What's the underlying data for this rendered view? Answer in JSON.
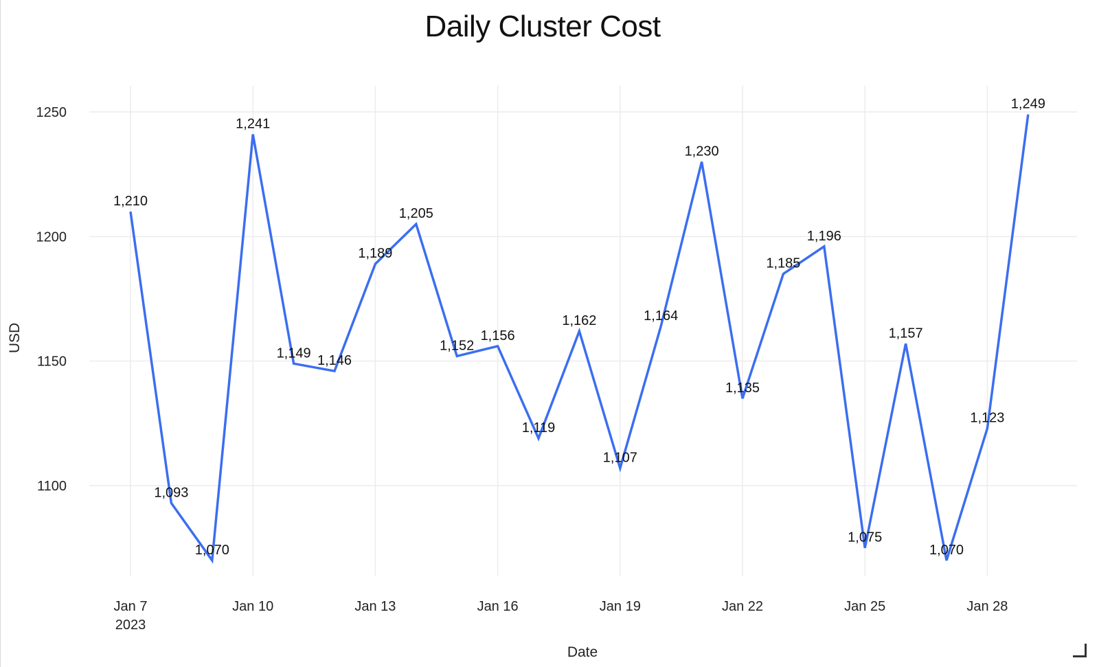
{
  "chart_data": {
    "type": "line",
    "title": "Daily Cluster Cost",
    "xlabel": "Date",
    "ylabel": "USD",
    "x": [
      "2023-01-07",
      "2023-01-08",
      "2023-01-09",
      "2023-01-10",
      "2023-01-11",
      "2023-01-12",
      "2023-01-13",
      "2023-01-14",
      "2023-01-15",
      "2023-01-16",
      "2023-01-17",
      "2023-01-18",
      "2023-01-19",
      "2023-01-20",
      "2023-01-21",
      "2023-01-22",
      "2023-01-23",
      "2023-01-24",
      "2023-01-25",
      "2023-01-26",
      "2023-01-27",
      "2023-01-28",
      "2023-01-29"
    ],
    "series": [
      {
        "values": [
          1210,
          1093,
          1070,
          1241,
          1149,
          1146,
          1189,
          1205,
          1152,
          1156,
          1119,
          1162,
          1107,
          1164,
          1230,
          1135,
          1185,
          1196,
          1075,
          1157,
          1070,
          1123,
          1249
        ],
        "labels": [
          "1,210",
          "1,093",
          "1,070",
          "1,241",
          "1,149",
          "1,146",
          "1,189",
          "1,205",
          "1,152",
          "1,156",
          "1,119",
          "1,162",
          "1,107",
          "1,164",
          "1,230",
          "1,135",
          "1,185",
          "1,196",
          "1,075",
          "1,157",
          "1,070",
          "1,123",
          "1,249"
        ],
        "color": "#3b6ef0"
      }
    ],
    "x_ticks": [
      {
        "date": "2023-01-07",
        "label": "Jan 7",
        "sublabel": "2023"
      },
      {
        "date": "2023-01-10",
        "label": "Jan 10"
      },
      {
        "date": "2023-01-13",
        "label": "Jan 13"
      },
      {
        "date": "2023-01-16",
        "label": "Jan 16"
      },
      {
        "date": "2023-01-19",
        "label": "Jan 19"
      },
      {
        "date": "2023-01-22",
        "label": "Jan 22"
      },
      {
        "date": "2023-01-25",
        "label": "Jan 25"
      },
      {
        "date": "2023-01-28",
        "label": "Jan 28"
      }
    ],
    "y_ticks": [
      1100,
      1150,
      1200,
      1250
    ],
    "ylim": [
      1060,
      1260
    ],
    "grid": true,
    "legend": "none"
  }
}
